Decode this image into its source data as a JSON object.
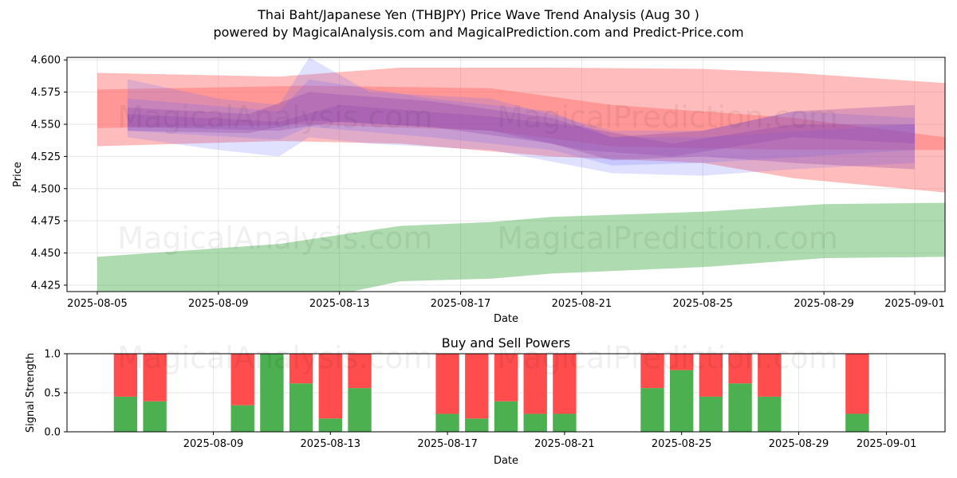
{
  "title": "Thai Baht/Japanese Yen (THBJPY) Price Wave Trend Analysis (Aug 30 )",
  "subtitle": "powered by MagicalAnalysis.com and MagicalPrediction.com and Predict-Price.com",
  "watermarks": [
    "MagicalAnalysis.com",
    "MagicalPrediction.com"
  ],
  "colors": {
    "red_band": "#ff6b6b",
    "blue_band": "#6666ff",
    "purple_band": "#8e44ad",
    "green_band": "#4caf50",
    "buy_bar": "#4caf50",
    "sell_bar": "#ff4d4d",
    "grid": "#e6e6e6"
  },
  "chart_data": [
    {
      "type": "area",
      "title": "",
      "xlabel": "Date",
      "ylabel": "Price",
      "x_ticks": [
        "2025-08-05",
        "2025-08-09",
        "2025-08-13",
        "2025-08-17",
        "2025-08-21",
        "2025-08-25",
        "2025-08-29",
        "2025-09-01"
      ],
      "y_ticks": [
        "4.425",
        "4.450",
        "4.475",
        "4.500",
        "4.525",
        "4.550",
        "4.575",
        "4.600"
      ],
      "ylim": [
        4.42,
        4.602
      ],
      "xlim": [
        "2025-08-04",
        "2025-09-02"
      ],
      "grid": true,
      "bands": [
        {
          "color": "red",
          "x": [
            "2025-08-05",
            "2025-08-11",
            "2025-08-15",
            "2025-08-20",
            "2025-08-25",
            "2025-08-28",
            "2025-09-02"
          ],
          "upper": [
            4.59,
            4.587,
            4.594,
            4.594,
            4.593,
            4.59,
            4.582
          ],
          "lower": [
            4.533,
            4.537,
            4.535,
            4.525,
            4.52,
            4.508,
            4.497
          ]
        },
        {
          "color": "red",
          "x": [
            "2025-08-05",
            "2025-08-12",
            "2025-08-18",
            "2025-08-22",
            "2025-08-28",
            "2025-09-02"
          ],
          "upper": [
            4.577,
            4.58,
            4.578,
            4.565,
            4.555,
            4.54
          ],
          "lower": [
            4.547,
            4.55,
            4.545,
            4.533,
            4.53,
            4.53
          ]
        },
        {
          "color": "blue",
          "x": [
            "2025-08-06",
            "2025-08-09",
            "2025-08-11",
            "2025-08-12",
            "2025-08-14",
            "2025-08-18",
            "2025-08-22",
            "2025-08-25",
            "2025-08-28",
            "2025-09-01"
          ],
          "upper": [
            4.585,
            4.57,
            4.565,
            4.602,
            4.575,
            4.57,
            4.545,
            4.545,
            4.56,
            4.555
          ],
          "lower": [
            4.54,
            4.53,
            4.525,
            4.54,
            4.535,
            4.53,
            4.512,
            4.51,
            4.515,
            4.52
          ]
        },
        {
          "color": "blue",
          "x": [
            "2025-08-06",
            "2025-08-11",
            "2025-08-12",
            "2025-08-16",
            "2025-08-20",
            "2025-08-22",
            "2025-08-25",
            "2025-09-01"
          ],
          "upper": [
            4.57,
            4.56,
            4.585,
            4.57,
            4.56,
            4.54,
            4.54,
            4.55
          ],
          "lower": [
            4.545,
            4.538,
            4.548,
            4.54,
            4.53,
            4.518,
            4.52,
            4.53
          ]
        },
        {
          "color": "purple",
          "x": [
            "2025-08-06",
            "2025-08-10",
            "2025-08-12",
            "2025-08-16",
            "2025-08-20",
            "2025-08-22",
            "2025-08-25",
            "2025-08-28",
            "2025-09-01"
          ],
          "upper": [
            4.563,
            4.558,
            4.575,
            4.568,
            4.555,
            4.54,
            4.545,
            4.56,
            4.565
          ],
          "lower": [
            4.545,
            4.543,
            4.553,
            4.548,
            4.535,
            4.522,
            4.525,
            4.52,
            4.515
          ]
        },
        {
          "color": "purple",
          "x": [
            "2025-08-06",
            "2025-08-11",
            "2025-08-13",
            "2025-08-18",
            "2025-08-21",
            "2025-08-24",
            "2025-08-28",
            "2025-09-01"
          ],
          "upper": [
            4.558,
            4.552,
            4.565,
            4.556,
            4.548,
            4.535,
            4.55,
            4.55
          ],
          "lower": [
            4.548,
            4.545,
            4.552,
            4.545,
            4.53,
            4.525,
            4.54,
            4.535
          ]
        },
        {
          "color": "green",
          "x": [
            "2025-08-05",
            "2025-08-11",
            "2025-08-15",
            "2025-08-18",
            "2025-08-20",
            "2025-08-25",
            "2025-08-29",
            "2025-09-02"
          ],
          "upper": [
            4.447,
            4.457,
            4.471,
            4.474,
            4.478,
            4.482,
            4.488,
            4.489
          ],
          "lower": [
            4.418,
            4.408,
            4.428,
            4.43,
            4.434,
            4.439,
            4.446,
            4.447
          ]
        }
      ]
    },
    {
      "type": "bar",
      "title": "Buy and Sell Powers",
      "xlabel": "Date",
      "ylabel": "Signal Strength",
      "ylim": [
        0,
        1.0
      ],
      "y_ticks": [
        "0.0",
        "0.5",
        "1.0"
      ],
      "x_ticks": [
        "2025-08-09",
        "2025-08-13",
        "2025-08-17",
        "2025-08-21",
        "2025-08-25",
        "2025-08-29",
        "2025-09-01"
      ],
      "xlim": [
        "2025-08-04",
        "2025-09-03"
      ],
      "grid": true,
      "categories": [
        "2025-08-06",
        "2025-08-07",
        "2025-08-10",
        "2025-08-11",
        "2025-08-12",
        "2025-08-13",
        "2025-08-14",
        "2025-08-17",
        "2025-08-18",
        "2025-08-19",
        "2025-08-20",
        "2025-08-21",
        "2025-08-24",
        "2025-08-25",
        "2025-08-26",
        "2025-08-27",
        "2025-08-28",
        "2025-08-31"
      ],
      "series": [
        {
          "name": "Buy",
          "values": [
            0.45,
            0.39,
            0.34,
            1.0,
            0.62,
            0.17,
            0.56,
            0.23,
            0.17,
            0.39,
            0.23,
            0.23,
            0.56,
            0.79,
            0.45,
            0.62,
            0.45,
            0.23
          ]
        },
        {
          "name": "Sell",
          "values": [
            0.55,
            0.61,
            0.66,
            0.0,
            0.38,
            0.83,
            0.44,
            0.77,
            0.83,
            0.61,
            0.77,
            0.77,
            0.44,
            0.21,
            0.55,
            0.38,
            0.55,
            0.77
          ]
        }
      ]
    }
  ]
}
